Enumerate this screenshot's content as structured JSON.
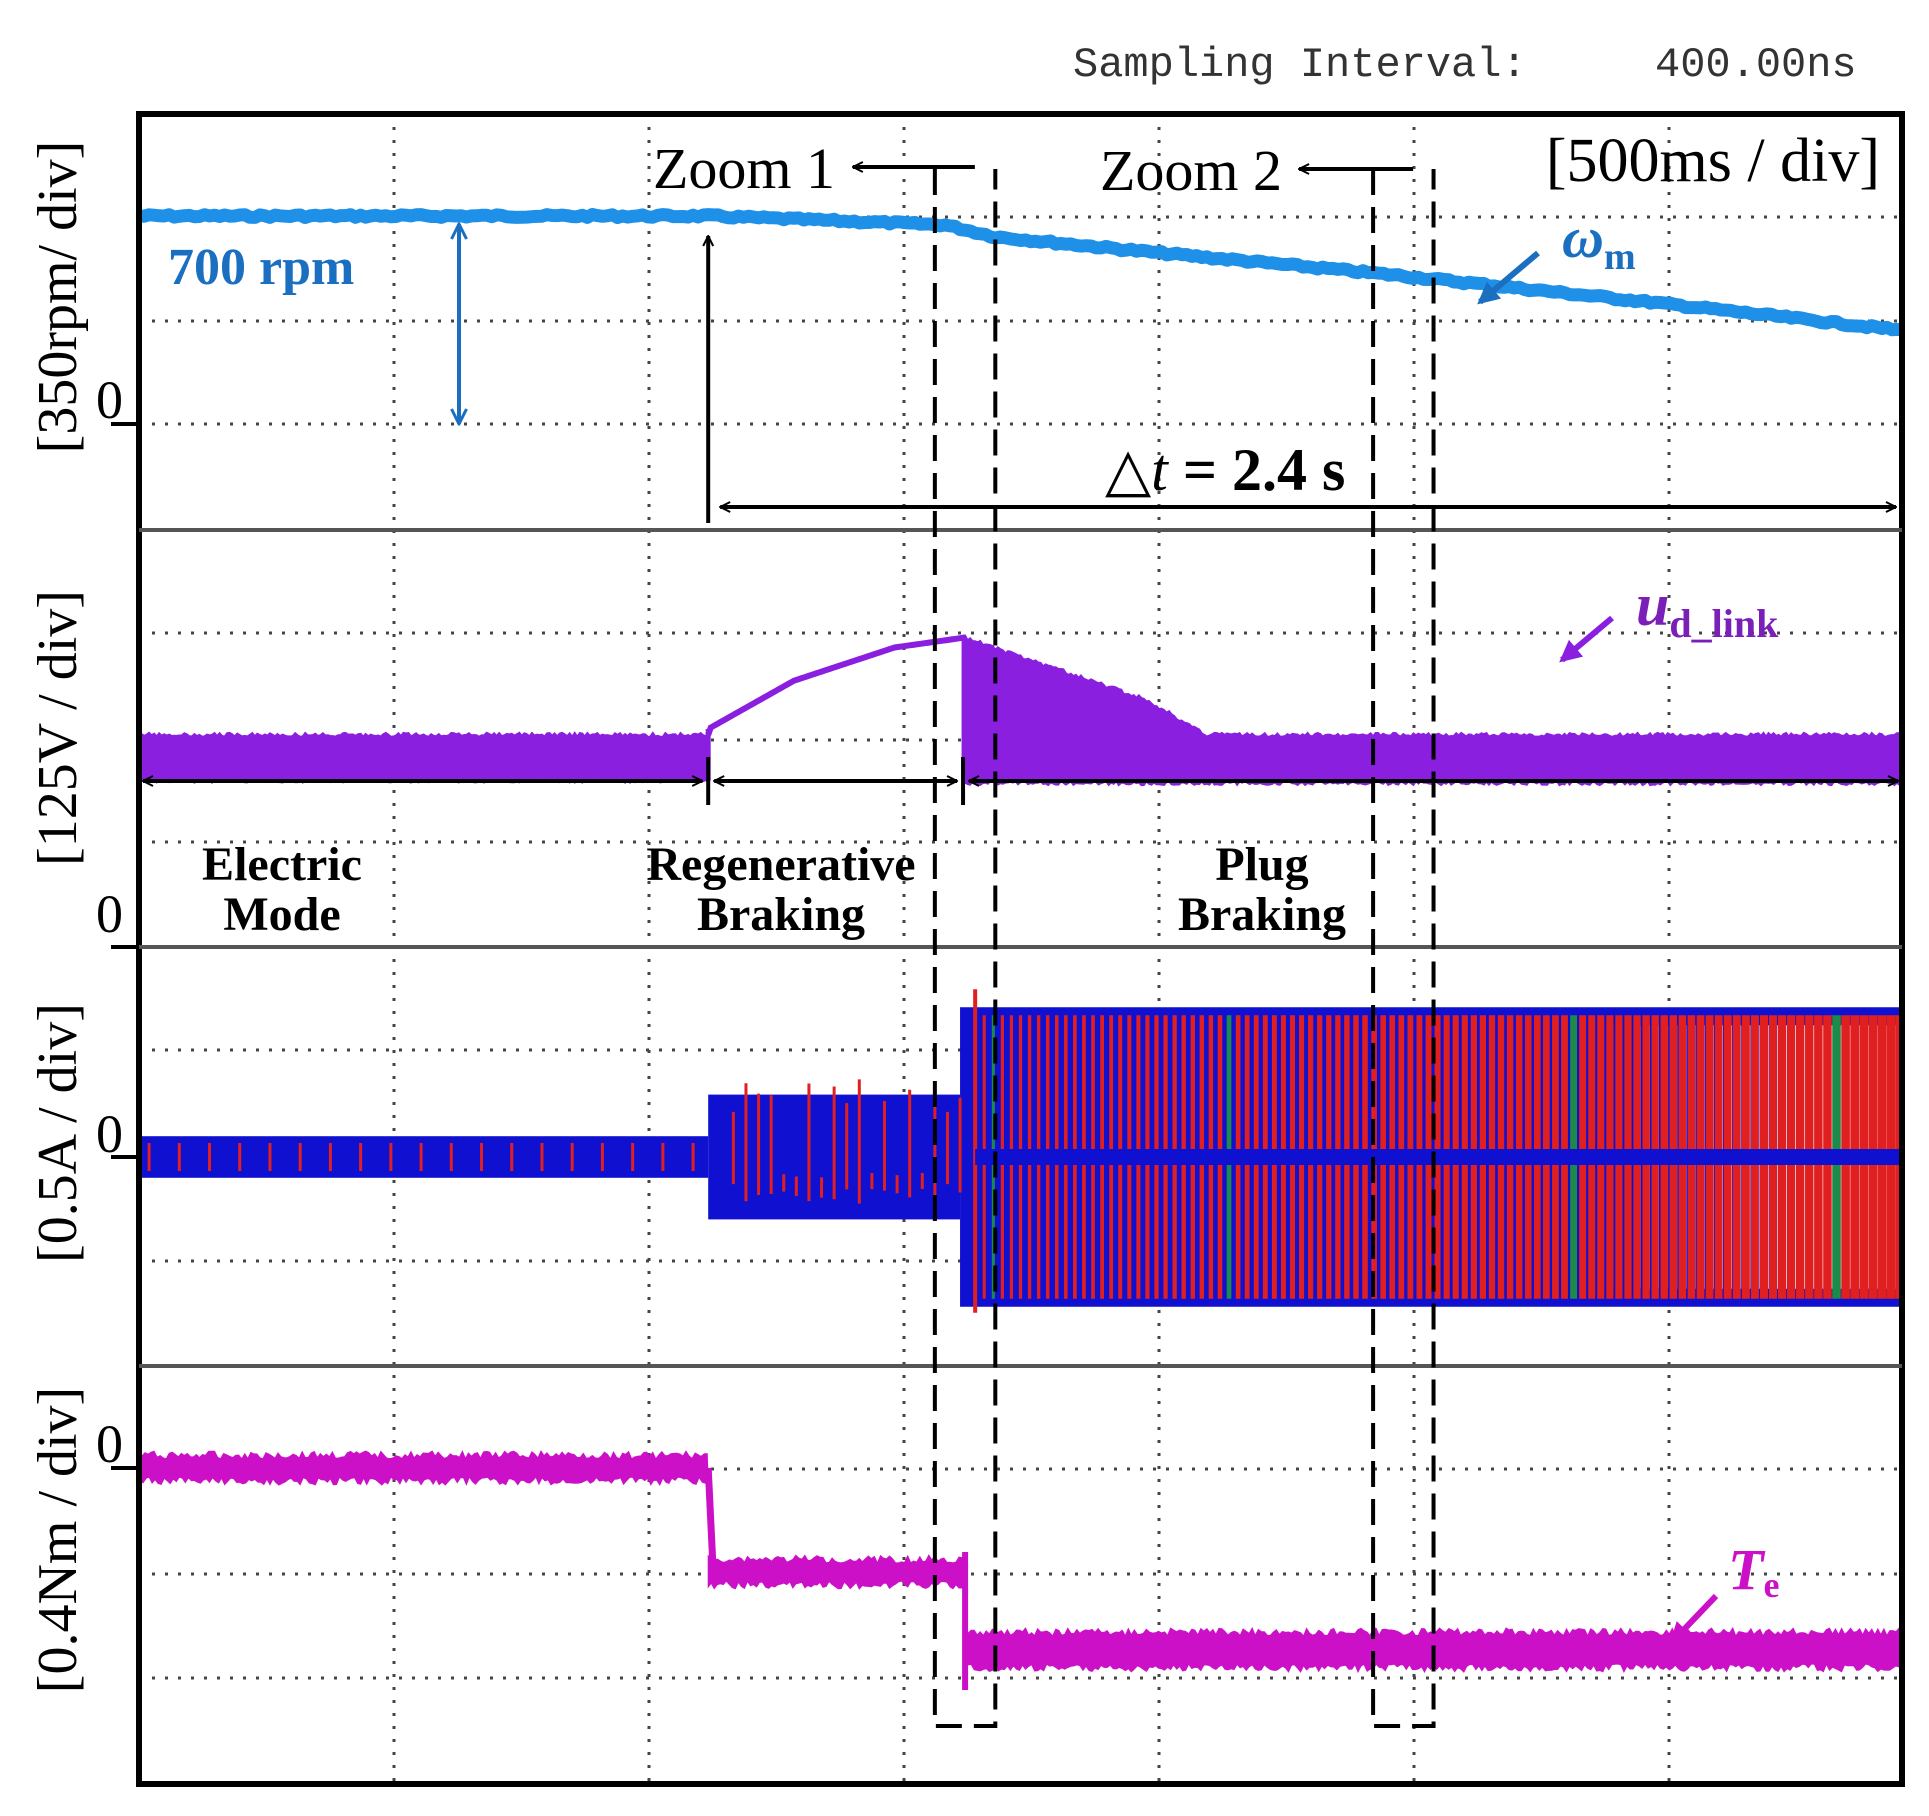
{
  "chart_data": {
    "type": "line",
    "title": "Oscilloscope capture: Electric Mode → Regenerative Braking → Plug Braking",
    "header": {
      "sampling_label": "Sampling Interval:",
      "sampling_value": "400.00ns"
    },
    "time_scale": "[500ms / div]",
    "x_axis": {
      "unit": "s",
      "range": [
        0,
        3.5
      ],
      "divisions": 7,
      "div_value": 0.5
    },
    "events": {
      "regen_start_s": 1.13,
      "plug_start_s": 1.63,
      "zoom1": [
        1.58,
        1.7
      ],
      "zoom2": [
        2.45,
        2.57
      ],
      "arrow_end_s": 3.5
    },
    "modes": [
      {
        "line1": "Electric",
        "line2": "Mode",
        "start_s": 0.0,
        "end_s": 1.13
      },
      {
        "line1": "Regenerative",
        "line2": "Braking",
        "start_s": 1.13,
        "end_s": 1.63
      },
      {
        "line1": "Plug",
        "line2": "Braking",
        "start_s": 1.63,
        "end_s": 3.5
      }
    ],
    "annotations": {
      "zoom1": "Zoom 1",
      "zoom2": "Zoom 2",
      "delta_t": "= 2.4 s",
      "delta_t_symbol": "△t",
      "speed_value": "700 rpm"
    },
    "panels": [
      {
        "id": "speed",
        "ylabel": "[350rpm/ div]",
        "zero_label": "0",
        "symbol": "ω",
        "subscript": "m",
        "color": "#1e90e8",
        "unit": "rpm",
        "div_value": 350,
        "zero_div": 0,
        "points": [
          [
            0,
            700
          ],
          [
            1.13,
            700
          ],
          [
            1.6,
            670
          ],
          [
            1.7,
            630
          ],
          [
            2.0,
            580
          ],
          [
            2.5,
            500
          ],
          [
            3.0,
            410
          ],
          [
            3.5,
            315
          ]
        ]
      },
      {
        "id": "dc_link",
        "ylabel": "[125V / div]",
        "zero_label": "0",
        "symbol": "u",
        "subscript": "d_link",
        "color": "#8b1fe0",
        "unit": "V",
        "div_value": 125,
        "zero_div": 0,
        "band_low": [
          [
            0,
            200
          ],
          [
            1.13,
            200
          ],
          [
            1.63,
            200
          ],
          [
            1.64,
            197
          ],
          [
            3.5,
            197
          ]
        ],
        "band_high": [
          [
            0,
            255
          ],
          [
            1.13,
            255
          ],
          [
            1.13,
            262
          ],
          [
            1.3,
            320
          ],
          [
            1.5,
            360
          ],
          [
            1.64,
            372
          ],
          [
            2.0,
            297
          ],
          [
            2.12,
            255
          ],
          [
            3.5,
            255
          ]
        ]
      },
      {
        "id": "phase_current",
        "ylabel": "[0.5A / div]",
        "zero_label": "0",
        "color": "#1010d0",
        "accents": [
          "#e02020",
          "#1e8a4a"
        ],
        "unit": "A",
        "div_value": 0.5,
        "zero_div": 1.0,
        "envelope": [
          {
            "t0": 0,
            "t1": 1.13,
            "amp": 0.1
          },
          {
            "t0": 1.13,
            "t1": 1.63,
            "amp": 0.3
          },
          {
            "t0": 1.63,
            "t1": 3.5,
            "amp": 0.72
          }
        ]
      },
      {
        "id": "torque",
        "ylabel": "[0.4Nm / div]",
        "zero_label": "0",
        "symbol": "T",
        "subscript": "e",
        "color": "#cc10c8",
        "unit": "Nm",
        "div_value": 0.4,
        "zero_div": 3.0,
        "segments": [
          {
            "t0": 0,
            "t1": 1.13,
            "value": 0.0
          },
          {
            "t0": 1.13,
            "t1": 1.64,
            "value": -0.4
          },
          {
            "t0": 1.64,
            "t1": 3.5,
            "value": -0.7
          }
        ]
      }
    ]
  }
}
